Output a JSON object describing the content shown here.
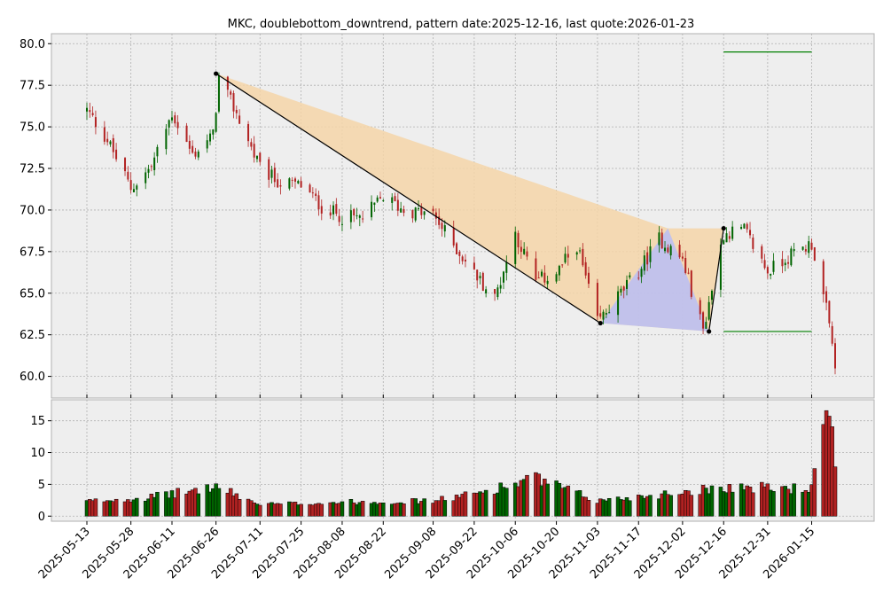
{
  "chart_data": {
    "type": "candlestick",
    "title": "MKC, doublebottom_downtrend, pattern date:2025-12-16, last quote:2026-01-23",
    "date_range": [
      "2025-05-13",
      "2026-01-23"
    ],
    "x_ticks": [
      "2025-05-13",
      "2025-05-28",
      "2025-06-11",
      "2025-06-26",
      "2025-07-11",
      "2025-07-25",
      "2025-08-08",
      "2025-08-22",
      "2025-09-08",
      "2025-09-22",
      "2025-10-06",
      "2025-10-20",
      "2025-11-03",
      "2025-11-17",
      "2025-12-02",
      "2025-12-16",
      "2025-12-31",
      "2026-01-15"
    ],
    "price_ticks": [
      "60.0",
      "62.5",
      "65.0",
      "67.5",
      "70.0",
      "72.5",
      "75.0",
      "77.5",
      "80.0"
    ],
    "volume_ticks": [
      "0",
      "5",
      "10",
      "15"
    ],
    "ylim_price": [
      58.7,
      80.6
    ],
    "ylim_volume": [
      -0.8,
      18.3
    ],
    "grid": true,
    "colors": {
      "up": "#006400",
      "down": "#b22222",
      "plot_bg": "#eeeeee",
      "grid": "#b0b0b0",
      "pattern_fill": "#f5d5a8",
      "pattern_inner_fill": "#b8bdf5",
      "target_line": "#007f00"
    },
    "close_series": [
      {
        "date": "2025-05-13",
        "close": 76.0
      },
      {
        "date": "2025-05-20",
        "close": 74.2
      },
      {
        "date": "2025-05-28",
        "close": 71.3
      },
      {
        "date": "2025-06-04",
        "close": 72.6
      },
      {
        "date": "2025-06-11",
        "close": 75.8
      },
      {
        "date": "2025-06-18",
        "close": 73.3
      },
      {
        "date": "2025-06-25",
        "close": 74.5
      },
      {
        "date": "2025-06-27",
        "close": 77.9
      },
      {
        "date": "2025-07-03",
        "close": 75.8
      },
      {
        "date": "2025-07-11",
        "close": 72.5
      },
      {
        "date": "2025-07-18",
        "close": 71.6
      },
      {
        "date": "2025-07-25",
        "close": 71.5
      },
      {
        "date": "2025-08-01",
        "close": 70.2
      },
      {
        "date": "2025-08-08",
        "close": 69.6
      },
      {
        "date": "2025-08-15",
        "close": 69.5
      },
      {
        "date": "2025-08-22",
        "close": 70.8
      },
      {
        "date": "2025-08-29",
        "close": 70.0
      },
      {
        "date": "2025-09-08",
        "close": 69.7
      },
      {
        "date": "2025-09-15",
        "close": 67.9
      },
      {
        "date": "2025-09-22",
        "close": 66.2
      },
      {
        "date": "2025-09-29",
        "close": 64.7
      },
      {
        "date": "2025-10-06",
        "close": 68.6
      },
      {
        "date": "2025-10-13",
        "close": 65.7
      },
      {
        "date": "2025-10-20",
        "close": 66.2
      },
      {
        "date": "2025-10-27",
        "close": 67.9
      },
      {
        "date": "2025-11-03",
        "close": 63.2
      },
      {
        "date": "2025-11-10",
        "close": 64.8
      },
      {
        "date": "2025-11-17",
        "close": 66.3
      },
      {
        "date": "2025-11-24",
        "close": 68.3
      },
      {
        "date": "2025-12-02",
        "close": 67.0
      },
      {
        "date": "2025-12-09",
        "close": 62.8
      },
      {
        "date": "2025-12-16",
        "close": 68.6
      },
      {
        "date": "2025-12-23",
        "close": 68.8
      },
      {
        "date": "2025-12-31",
        "close": 66.3
      },
      {
        "date": "2026-01-07",
        "close": 67.2
      },
      {
        "date": "2026-01-15",
        "close": 68.0
      },
      {
        "date": "2026-01-20",
        "close": 64.0
      },
      {
        "date": "2026-01-23",
        "close": 60.8
      }
    ],
    "volume_series": [
      {
        "date": "2025-05-13",
        "volume": 2.3
      },
      {
        "date": "2025-06-04",
        "volume": 3.0
      },
      {
        "date": "2025-06-26",
        "volume": 4.6
      },
      {
        "date": "2025-07-11",
        "volume": 1.8
      },
      {
        "date": "2025-08-08",
        "volume": 2.2
      },
      {
        "date": "2025-09-08",
        "volume": 2.4
      },
      {
        "date": "2025-09-22",
        "volume": 3.5
      },
      {
        "date": "2025-10-13",
        "volume": 5.9
      },
      {
        "date": "2025-11-03",
        "volume": 2.4
      },
      {
        "date": "2025-11-24",
        "volume": 3.4
      },
      {
        "date": "2025-12-16",
        "volume": 4.6
      },
      {
        "date": "2026-01-15",
        "volume": 4.3
      },
      {
        "date": "2026-01-21",
        "volume": 17.3
      },
      {
        "date": "2026-01-23",
        "volume": 6.6
      }
    ],
    "pattern": {
      "points": [
        {
          "date": "2025-06-26",
          "price": 78.2
        },
        {
          "date": "2025-11-04",
          "price": 63.2
        },
        {
          "date": "2025-11-27",
          "price": 68.9
        },
        {
          "date": "2025-12-11",
          "price": 62.7
        },
        {
          "date": "2025-12-16",
          "price": 68.9
        }
      ],
      "flat_top_end": "2025-12-16",
      "target_lines": [
        {
          "price": 79.5,
          "start": "2025-12-16",
          "end": "2026-01-15"
        },
        {
          "price": 62.7,
          "start": "2025-12-16",
          "end": "2026-01-15"
        }
      ]
    }
  }
}
